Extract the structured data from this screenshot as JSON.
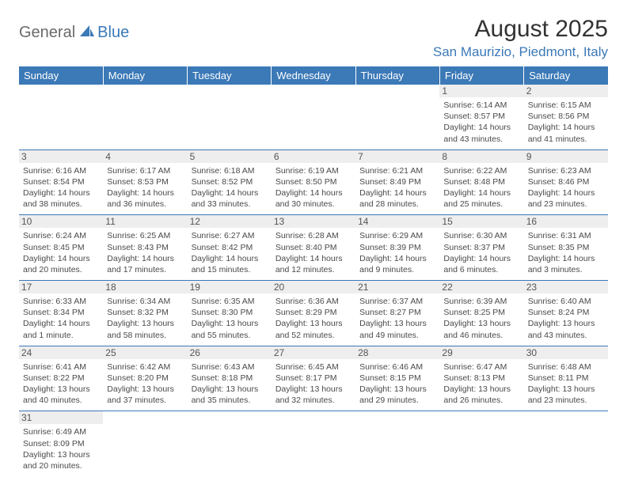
{
  "logo": {
    "part1": "General",
    "part2": "Blue"
  },
  "title": "August 2025",
  "location": "San Maurizio, Piedmont, Italy",
  "colors": {
    "brand_blue": "#3b79b7",
    "logo_gray": "#6a6a6a",
    "daynum_bg": "#eeeeee",
    "text": "#4a4a4a"
  },
  "day_headers": [
    "Sunday",
    "Monday",
    "Tuesday",
    "Wednesday",
    "Thursday",
    "Friday",
    "Saturday"
  ],
  "weeks": [
    [
      null,
      null,
      null,
      null,
      null,
      {
        "n": "1",
        "sunrise": "Sunrise: 6:14 AM",
        "sunset": "Sunset: 8:57 PM",
        "daylight": "Daylight: 14 hours and 43 minutes."
      },
      {
        "n": "2",
        "sunrise": "Sunrise: 6:15 AM",
        "sunset": "Sunset: 8:56 PM",
        "daylight": "Daylight: 14 hours and 41 minutes."
      }
    ],
    [
      {
        "n": "3",
        "sunrise": "Sunrise: 6:16 AM",
        "sunset": "Sunset: 8:54 PM",
        "daylight": "Daylight: 14 hours and 38 minutes."
      },
      {
        "n": "4",
        "sunrise": "Sunrise: 6:17 AM",
        "sunset": "Sunset: 8:53 PM",
        "daylight": "Daylight: 14 hours and 36 minutes."
      },
      {
        "n": "5",
        "sunrise": "Sunrise: 6:18 AM",
        "sunset": "Sunset: 8:52 PM",
        "daylight": "Daylight: 14 hours and 33 minutes."
      },
      {
        "n": "6",
        "sunrise": "Sunrise: 6:19 AM",
        "sunset": "Sunset: 8:50 PM",
        "daylight": "Daylight: 14 hours and 30 minutes."
      },
      {
        "n": "7",
        "sunrise": "Sunrise: 6:21 AM",
        "sunset": "Sunset: 8:49 PM",
        "daylight": "Daylight: 14 hours and 28 minutes."
      },
      {
        "n": "8",
        "sunrise": "Sunrise: 6:22 AM",
        "sunset": "Sunset: 8:48 PM",
        "daylight": "Daylight: 14 hours and 25 minutes."
      },
      {
        "n": "9",
        "sunrise": "Sunrise: 6:23 AM",
        "sunset": "Sunset: 8:46 PM",
        "daylight": "Daylight: 14 hours and 23 minutes."
      }
    ],
    [
      {
        "n": "10",
        "sunrise": "Sunrise: 6:24 AM",
        "sunset": "Sunset: 8:45 PM",
        "daylight": "Daylight: 14 hours and 20 minutes."
      },
      {
        "n": "11",
        "sunrise": "Sunrise: 6:25 AM",
        "sunset": "Sunset: 8:43 PM",
        "daylight": "Daylight: 14 hours and 17 minutes."
      },
      {
        "n": "12",
        "sunrise": "Sunrise: 6:27 AM",
        "sunset": "Sunset: 8:42 PM",
        "daylight": "Daylight: 14 hours and 15 minutes."
      },
      {
        "n": "13",
        "sunrise": "Sunrise: 6:28 AM",
        "sunset": "Sunset: 8:40 PM",
        "daylight": "Daylight: 14 hours and 12 minutes."
      },
      {
        "n": "14",
        "sunrise": "Sunrise: 6:29 AM",
        "sunset": "Sunset: 8:39 PM",
        "daylight": "Daylight: 14 hours and 9 minutes."
      },
      {
        "n": "15",
        "sunrise": "Sunrise: 6:30 AM",
        "sunset": "Sunset: 8:37 PM",
        "daylight": "Daylight: 14 hours and 6 minutes."
      },
      {
        "n": "16",
        "sunrise": "Sunrise: 6:31 AM",
        "sunset": "Sunset: 8:35 PM",
        "daylight": "Daylight: 14 hours and 3 minutes."
      }
    ],
    [
      {
        "n": "17",
        "sunrise": "Sunrise: 6:33 AM",
        "sunset": "Sunset: 8:34 PM",
        "daylight": "Daylight: 14 hours and 1 minute."
      },
      {
        "n": "18",
        "sunrise": "Sunrise: 6:34 AM",
        "sunset": "Sunset: 8:32 PM",
        "daylight": "Daylight: 13 hours and 58 minutes."
      },
      {
        "n": "19",
        "sunrise": "Sunrise: 6:35 AM",
        "sunset": "Sunset: 8:30 PM",
        "daylight": "Daylight: 13 hours and 55 minutes."
      },
      {
        "n": "20",
        "sunrise": "Sunrise: 6:36 AM",
        "sunset": "Sunset: 8:29 PM",
        "daylight": "Daylight: 13 hours and 52 minutes."
      },
      {
        "n": "21",
        "sunrise": "Sunrise: 6:37 AM",
        "sunset": "Sunset: 8:27 PM",
        "daylight": "Daylight: 13 hours and 49 minutes."
      },
      {
        "n": "22",
        "sunrise": "Sunrise: 6:39 AM",
        "sunset": "Sunset: 8:25 PM",
        "daylight": "Daylight: 13 hours and 46 minutes."
      },
      {
        "n": "23",
        "sunrise": "Sunrise: 6:40 AM",
        "sunset": "Sunset: 8:24 PM",
        "daylight": "Daylight: 13 hours and 43 minutes."
      }
    ],
    [
      {
        "n": "24",
        "sunrise": "Sunrise: 6:41 AM",
        "sunset": "Sunset: 8:22 PM",
        "daylight": "Daylight: 13 hours and 40 minutes."
      },
      {
        "n": "25",
        "sunrise": "Sunrise: 6:42 AM",
        "sunset": "Sunset: 8:20 PM",
        "daylight": "Daylight: 13 hours and 37 minutes."
      },
      {
        "n": "26",
        "sunrise": "Sunrise: 6:43 AM",
        "sunset": "Sunset: 8:18 PM",
        "daylight": "Daylight: 13 hours and 35 minutes."
      },
      {
        "n": "27",
        "sunrise": "Sunrise: 6:45 AM",
        "sunset": "Sunset: 8:17 PM",
        "daylight": "Daylight: 13 hours and 32 minutes."
      },
      {
        "n": "28",
        "sunrise": "Sunrise: 6:46 AM",
        "sunset": "Sunset: 8:15 PM",
        "daylight": "Daylight: 13 hours and 29 minutes."
      },
      {
        "n": "29",
        "sunrise": "Sunrise: 6:47 AM",
        "sunset": "Sunset: 8:13 PM",
        "daylight": "Daylight: 13 hours and 26 minutes."
      },
      {
        "n": "30",
        "sunrise": "Sunrise: 6:48 AM",
        "sunset": "Sunset: 8:11 PM",
        "daylight": "Daylight: 13 hours and 23 minutes."
      }
    ],
    [
      {
        "n": "31",
        "sunrise": "Sunrise: 6:49 AM",
        "sunset": "Sunset: 8:09 PM",
        "daylight": "Daylight: 13 hours and 20 minutes."
      },
      null,
      null,
      null,
      null,
      null,
      null
    ]
  ]
}
